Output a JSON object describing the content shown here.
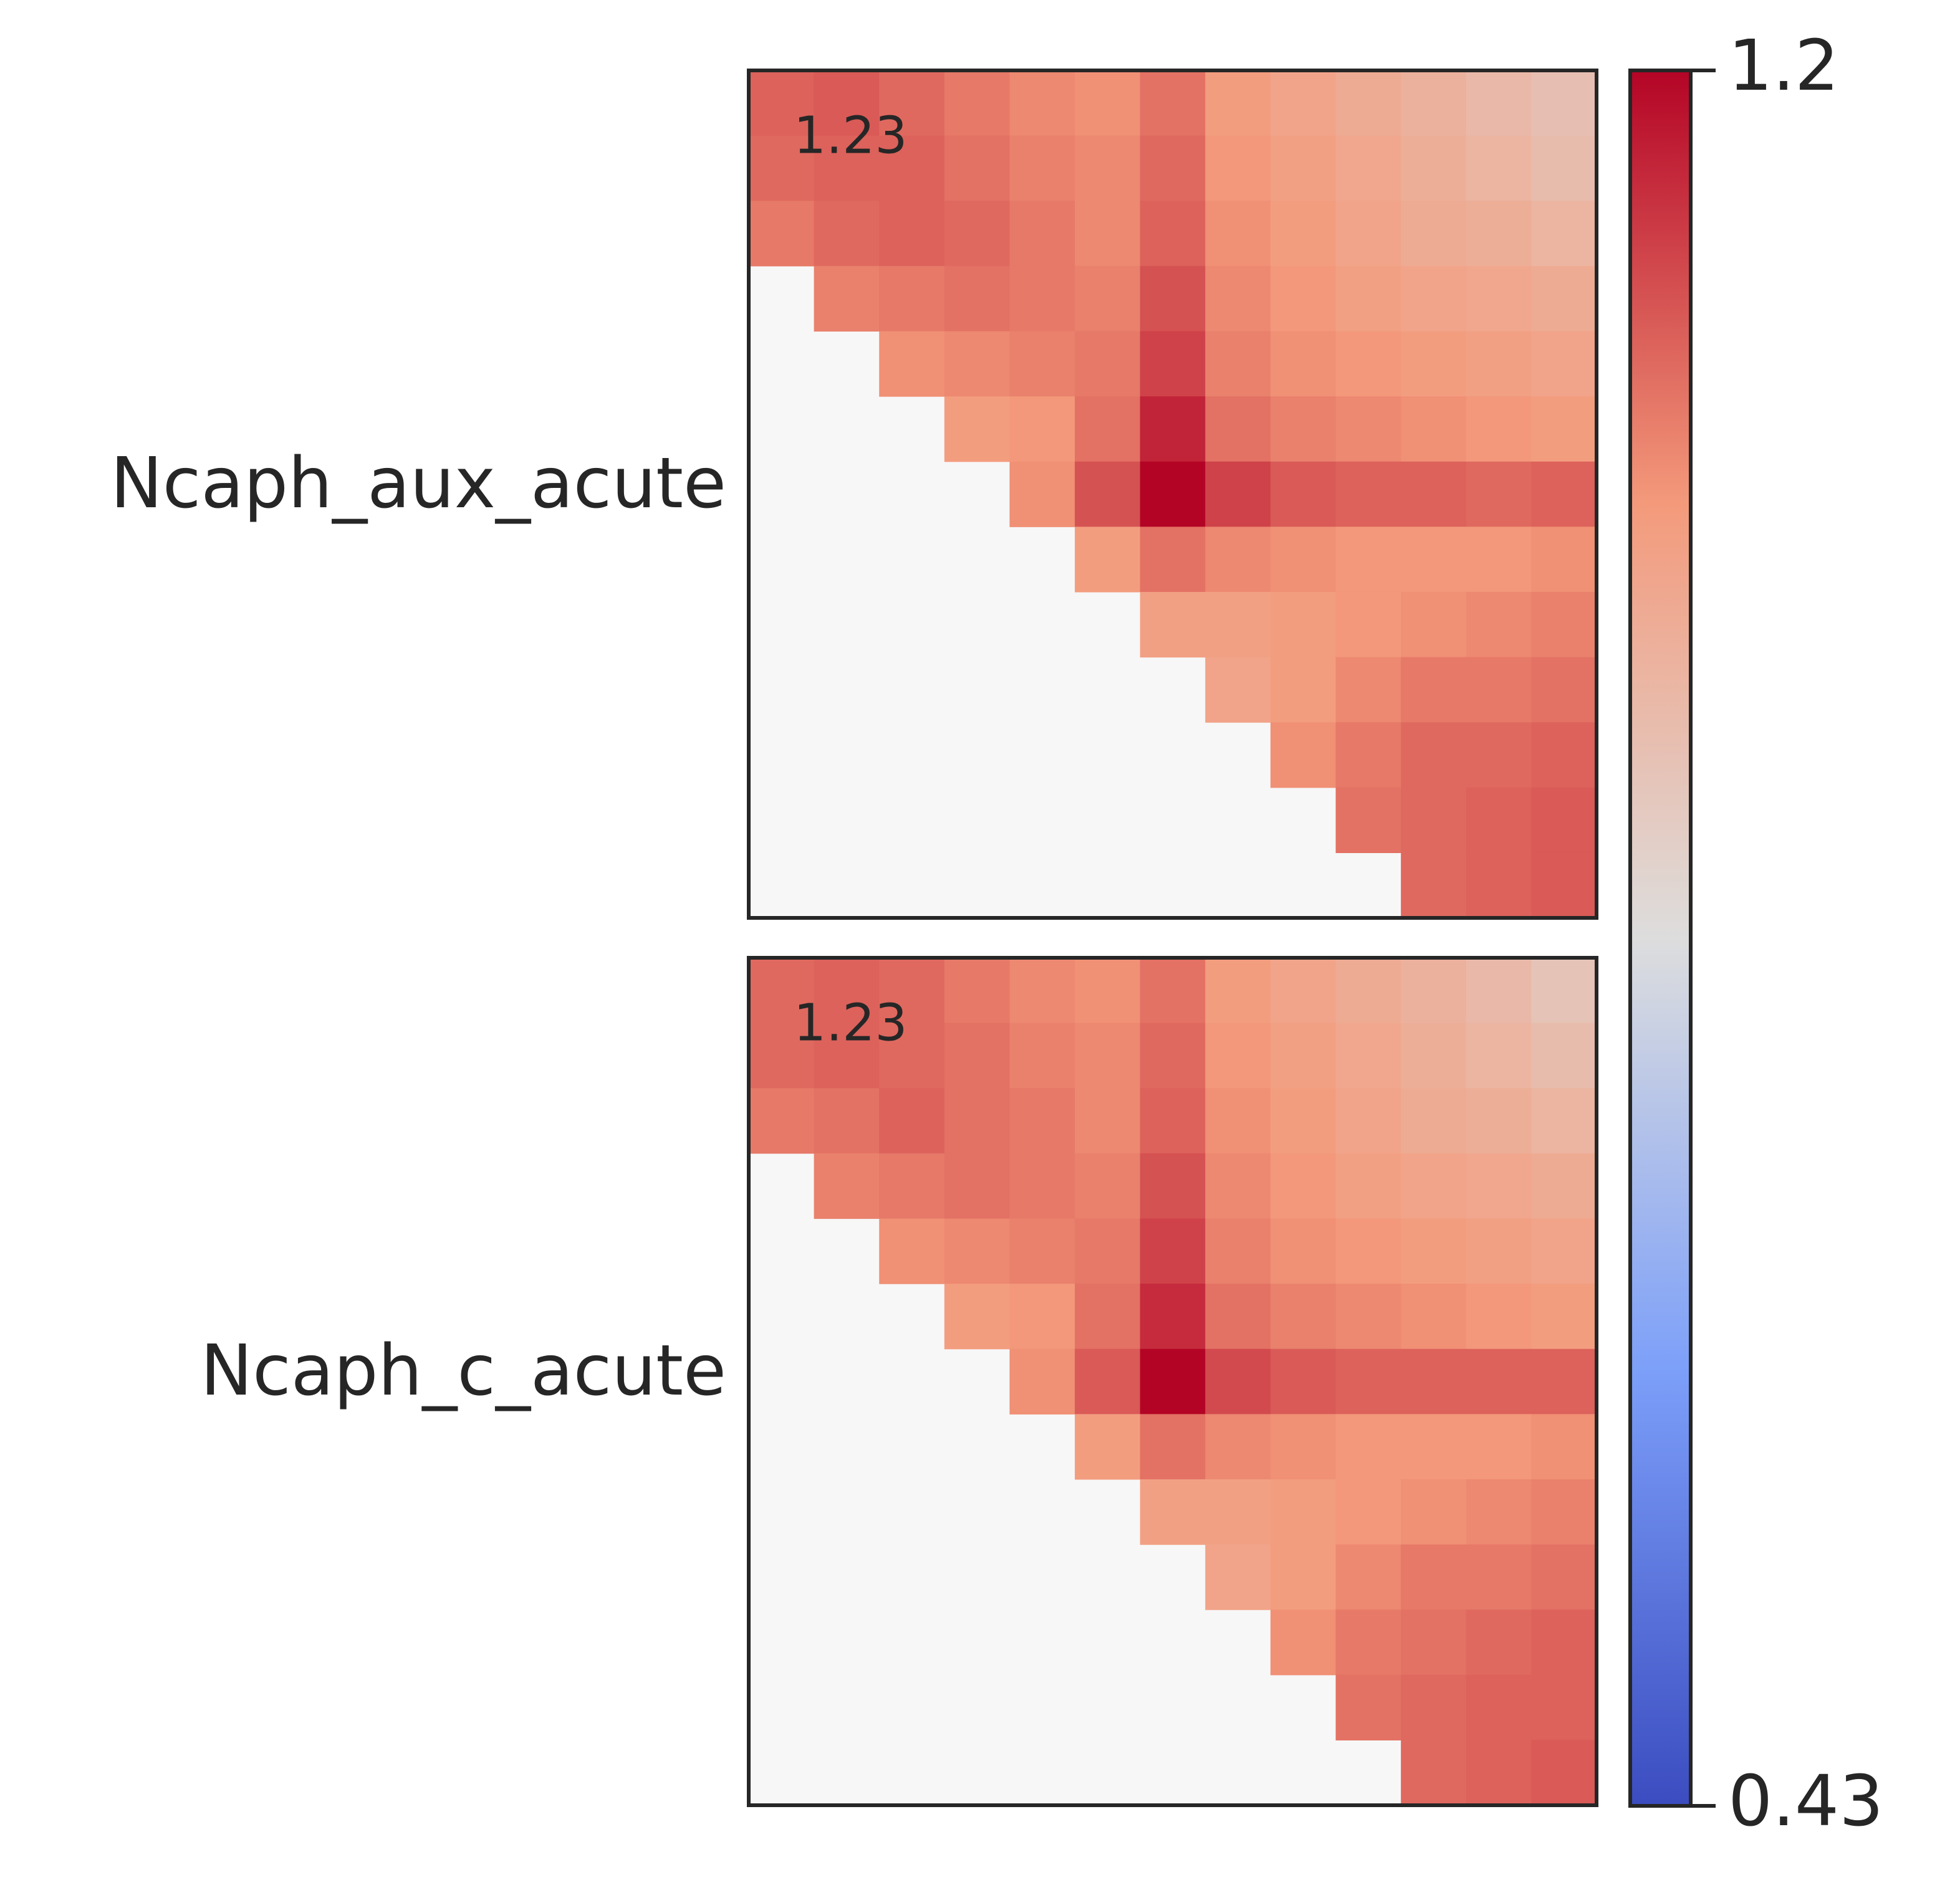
{
  "chart_data": {
    "type": "heatmap",
    "colormap": "coolwarm",
    "nan_color": "#f7f7f7",
    "zlim": [
      0.43,
      1.2
    ],
    "zticks": [
      0.43,
      1.2
    ],
    "panels": [
      {
        "label": "Ncaph_aux_acute",
        "annotation": "1.23",
        "values": [
          [
            1.08,
            1.09,
            1.07,
            1.05,
            1.03,
            1.02,
            1.06,
            1.0,
            0.98,
            0.96,
            0.94,
            0.92,
            0.9
          ],
          [
            1.07,
            1.08,
            1.08,
            1.06,
            1.04,
            1.03,
            1.07,
            1.01,
            0.99,
            0.97,
            0.95,
            0.93,
            0.91
          ],
          [
            1.05,
            1.07,
            1.08,
            1.07,
            1.05,
            1.03,
            1.08,
            1.02,
            1.0,
            0.98,
            0.96,
            0.95,
            0.93
          ],
          [
            null,
            1.04,
            1.05,
            1.06,
            1.05,
            1.04,
            1.1,
            1.03,
            1.01,
            0.99,
            0.98,
            0.97,
            0.96
          ],
          [
            null,
            null,
            1.02,
            1.03,
            1.04,
            1.05,
            1.12,
            1.04,
            1.02,
            1.01,
            1.0,
            0.99,
            0.98
          ],
          [
            null,
            null,
            null,
            1.0,
            1.01,
            1.06,
            1.16,
            1.06,
            1.04,
            1.03,
            1.02,
            1.01,
            1.0
          ],
          [
            null,
            null,
            null,
            null,
            1.02,
            1.1,
            1.2,
            1.12,
            1.09,
            1.08,
            1.08,
            1.07,
            1.08
          ],
          [
            null,
            null,
            null,
            null,
            null,
            1.0,
            1.06,
            1.03,
            1.02,
            1.01,
            1.01,
            1.01,
            1.02
          ],
          [
            null,
            null,
            null,
            null,
            null,
            null,
            0.99,
            0.99,
            1.0,
            1.01,
            1.02,
            1.03,
            1.04
          ],
          [
            null,
            null,
            null,
            null,
            null,
            null,
            null,
            0.98,
            1.0,
            1.03,
            1.05,
            1.05,
            1.06
          ],
          [
            null,
            null,
            null,
            null,
            null,
            null,
            null,
            null,
            1.02,
            1.05,
            1.07,
            1.07,
            1.08
          ],
          [
            null,
            null,
            null,
            null,
            null,
            null,
            null,
            null,
            null,
            1.06,
            1.07,
            1.08,
            1.09
          ],
          [
            null,
            null,
            null,
            null,
            null,
            null,
            null,
            null,
            null,
            null,
            1.07,
            1.08,
            1.09
          ]
        ]
      },
      {
        "label": "Ncaph_c_acute",
        "annotation": "1.23",
        "values": [
          [
            1.07,
            1.08,
            1.07,
            1.05,
            1.03,
            1.02,
            1.06,
            1.0,
            0.98,
            0.96,
            0.94,
            0.92,
            0.89
          ],
          [
            1.07,
            1.08,
            1.07,
            1.06,
            1.04,
            1.03,
            1.07,
            1.01,
            0.99,
            0.97,
            0.95,
            0.93,
            0.91
          ],
          [
            1.05,
            1.06,
            1.08,
            1.06,
            1.05,
            1.03,
            1.08,
            1.02,
            1.0,
            0.98,
            0.96,
            0.95,
            0.93
          ],
          [
            null,
            1.04,
            1.05,
            1.06,
            1.05,
            1.04,
            1.1,
            1.03,
            1.01,
            0.99,
            0.98,
            0.97,
            0.96
          ],
          [
            null,
            null,
            1.02,
            1.03,
            1.04,
            1.05,
            1.12,
            1.04,
            1.02,
            1.01,
            1.0,
            0.99,
            0.98
          ],
          [
            null,
            null,
            null,
            1.0,
            1.01,
            1.06,
            1.15,
            1.06,
            1.04,
            1.03,
            1.02,
            1.01,
            1.0
          ],
          [
            null,
            null,
            null,
            null,
            1.02,
            1.09,
            1.2,
            1.11,
            1.09,
            1.08,
            1.08,
            1.08,
            1.08
          ],
          [
            null,
            null,
            null,
            null,
            null,
            1.0,
            1.06,
            1.03,
            1.02,
            1.01,
            1.01,
            1.01,
            1.02
          ],
          [
            null,
            null,
            null,
            null,
            null,
            null,
            0.99,
            0.99,
            1.0,
            1.01,
            1.02,
            1.03,
            1.04
          ],
          [
            null,
            null,
            null,
            null,
            null,
            null,
            null,
            0.98,
            1.0,
            1.03,
            1.05,
            1.05,
            1.06
          ],
          [
            null,
            null,
            null,
            null,
            null,
            null,
            null,
            null,
            1.02,
            1.05,
            1.06,
            1.07,
            1.08
          ],
          [
            null,
            null,
            null,
            null,
            null,
            null,
            null,
            null,
            null,
            1.06,
            1.07,
            1.08,
            1.08
          ],
          [
            null,
            null,
            null,
            null,
            null,
            null,
            null,
            null,
            null,
            null,
            1.07,
            1.08,
            1.09
          ]
        ]
      }
    ]
  }
}
